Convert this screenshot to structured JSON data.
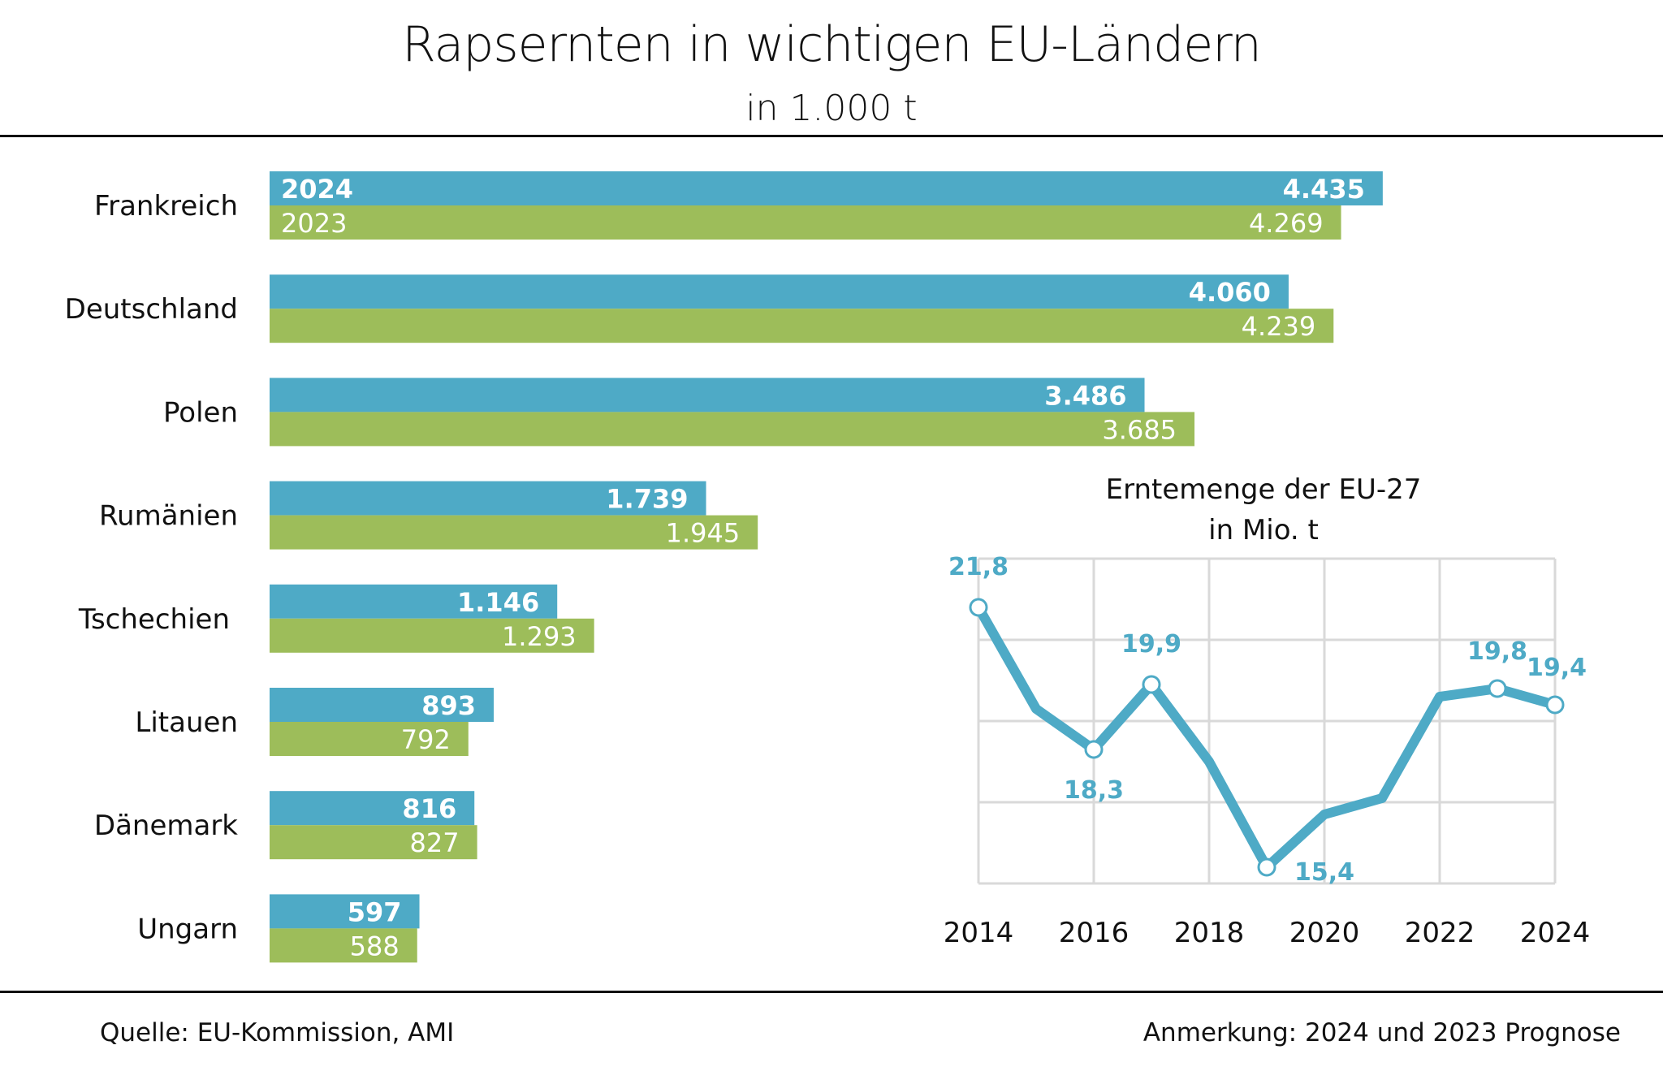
{
  "header": {
    "title": "Rapsernten in wichtigen EU-Ländern",
    "subtitle": "in 1.000 t"
  },
  "footer": {
    "source": "Quelle:  EU-Kommission, AMI",
    "note": "Anmerkung: 2024 und 2023 Prognose"
  },
  "colors": {
    "series_2024": "#4eaac6",
    "series_2023": "#9dbd5a",
    "grid": "#d9d9d9"
  },
  "chart_data": [
    {
      "type": "bar",
      "orientation": "horizontal",
      "title": "Rapsernten in wichtigen EU-Ländern",
      "subtitle": "in 1.000 t",
      "unit": "1.000 t",
      "categories": [
        "Frankreich",
        "Deutschland",
        "Polen",
        "Rumänien",
        "Tschechien",
        "Litauen",
        "Dänemark",
        "Ungarn"
      ],
      "series": [
        {
          "name": "2024",
          "values": [
            4435,
            4060,
            3486,
            1739,
            1146,
            893,
            816,
            597
          ],
          "labels": [
            "4.435",
            "4.060",
            "3.486",
            "1.739",
            "1.146",
            "893",
            "816",
            "597"
          ]
        },
        {
          "name": "2023",
          "values": [
            4269,
            4239,
            3685,
            1945,
            1293,
            792,
            827,
            588
          ],
          "labels": [
            "4.269",
            "4.239",
            "3.685",
            "1.945",
            "1.293",
            "792",
            "827",
            "588"
          ]
        }
      ],
      "legend": "inline in first bar pair (left)",
      "grid": false
    },
    {
      "type": "line",
      "title": "Erntemenge der EU-27",
      "subtitle": "in Mio. t",
      "x": [
        2014,
        2015,
        2016,
        2017,
        2018,
        2019,
        2020,
        2021,
        2022,
        2023,
        2024
      ],
      "series": [
        {
          "name": "EU-27",
          "values": [
            21.8,
            19.3,
            18.3,
            19.9,
            18.0,
            15.4,
            16.7,
            17.1,
            19.6,
            19.8,
            19.4
          ]
        }
      ],
      "labeled_points": [
        {
          "x": 2014,
          "label": "21,8",
          "pos": "above"
        },
        {
          "x": 2016,
          "label": "18,3",
          "pos": "below"
        },
        {
          "x": 2017,
          "label": "19,9",
          "pos": "above"
        },
        {
          "x": 2019,
          "label": "15,4",
          "pos": "right"
        },
        {
          "x": 2023,
          "label": "19,8",
          "pos": "above"
        },
        {
          "x": 2024,
          "label": "19,4",
          "pos": "above"
        }
      ],
      "xticks": [
        "2014",
        "2016",
        "2018",
        "2020",
        "2022",
        "2024"
      ],
      "xlim": [
        2014,
        2024
      ],
      "ylim": [
        15,
        23
      ],
      "ygrid": [
        15,
        17,
        19,
        21,
        23
      ],
      "yticks_shown": false,
      "grid": true
    }
  ]
}
